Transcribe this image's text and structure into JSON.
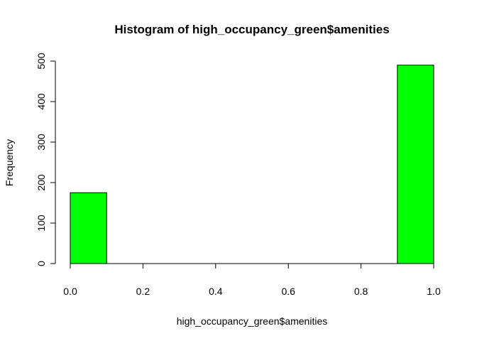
{
  "chart_data": {
    "type": "bar",
    "title": "Histogram of high_occupancy_green$amenities",
    "xlabel": "high_occupancy_green$amenities",
    "ylabel": "Frequency",
    "bins": [
      {
        "from": 0.0,
        "to": 0.1,
        "count": 175
      },
      {
        "from": 0.1,
        "to": 0.2,
        "count": 0
      },
      {
        "from": 0.2,
        "to": 0.3,
        "count": 0
      },
      {
        "from": 0.3,
        "to": 0.4,
        "count": 0
      },
      {
        "from": 0.4,
        "to": 0.5,
        "count": 0
      },
      {
        "from": 0.5,
        "to": 0.6,
        "count": 0
      },
      {
        "from": 0.6,
        "to": 0.7,
        "count": 0
      },
      {
        "from": 0.7,
        "to": 0.8,
        "count": 0
      },
      {
        "from": 0.8,
        "to": 0.9,
        "count": 0
      },
      {
        "from": 0.9,
        "to": 1.0,
        "count": 490
      }
    ],
    "xlim": [
      0,
      1
    ],
    "ylim": [
      0,
      500
    ],
    "x_ticks": [
      "0.0",
      "0.2",
      "0.4",
      "0.6",
      "0.8",
      "1.0"
    ],
    "y_ticks": [
      "0",
      "100",
      "200",
      "300",
      "400",
      "500"
    ],
    "bar_color": "#00ff00",
    "grid": false
  }
}
